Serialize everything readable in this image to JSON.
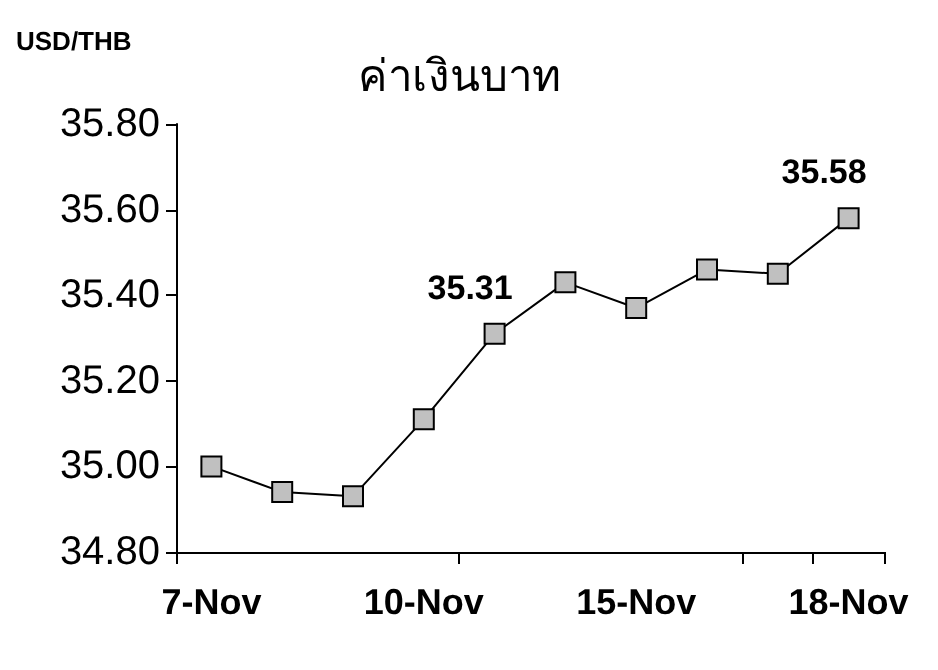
{
  "chart_data": {
    "type": "line",
    "title": "ค่าเงินบาท",
    "ylabel": "USD/THB",
    "categories": [
      "7-Nov",
      null,
      null,
      "10-Nov",
      null,
      null,
      "15-Nov",
      null,
      null,
      "18-Nov"
    ],
    "series": [
      {
        "color": "#000000",
        "values": [
          35.0,
          34.94,
          34.93,
          35.11,
          35.31,
          35.43,
          35.37,
          35.46,
          35.45,
          35.58
        ],
        "value_labels": [
          null,
          null,
          null,
          null,
          "35.31",
          null,
          null,
          null,
          null,
          "35.58"
        ]
      }
    ],
    "ylim": [
      34.8,
      35.8
    ],
    "yticks": [
      {
        "value": 34.8,
        "label": "34.80"
      },
      {
        "value": 35.0,
        "label": "35.00"
      },
      {
        "value": 35.2,
        "label": "35.20"
      },
      {
        "value": 35.4,
        "label": "35.40"
      },
      {
        "value": 35.6,
        "label": "35.60"
      },
      {
        "value": 35.8,
        "label": "35.80"
      }
    ],
    "grid": false,
    "marker": "square",
    "line_style": "solid"
  }
}
